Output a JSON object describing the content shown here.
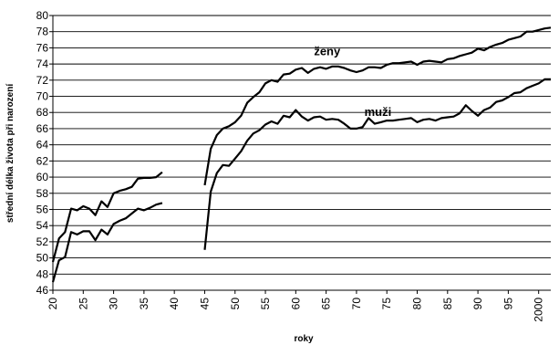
{
  "chart_data": {
    "type": "line",
    "xlabel": "roky",
    "ylabel": "střední délka života při narození",
    "xlim": [
      1920,
      2002
    ],
    "ylim": [
      46,
      80
    ],
    "y_ticks": [
      46,
      48,
      50,
      52,
      54,
      56,
      58,
      60,
      62,
      64,
      66,
      68,
      70,
      72,
      74,
      76,
      78,
      80
    ],
    "x_tick_values": [
      1920,
      1925,
      1930,
      1935,
      1940,
      1945,
      1950,
      1955,
      1960,
      1965,
      1970,
      1975,
      1980,
      1985,
      1990,
      1995,
      2000
    ],
    "x_tick_labels": [
      "20",
      "25",
      "30",
      "35",
      "40",
      "45",
      "50",
      "55",
      "60",
      "65",
      "70",
      "75",
      "80",
      "85",
      "90",
      "95",
      "2000"
    ],
    "grid": true,
    "legend": "none",
    "series": [
      {
        "name": "ženy",
        "label_at": [
          1963,
          75.1
        ],
        "segments": [
          {
            "x": [
              1920,
              1921,
              1922,
              1923,
              1924,
              1925,
              1926,
              1927,
              1928,
              1929,
              1930,
              1931,
              1932,
              1933,
              1934,
              1935,
              1936,
              1937,
              1938
            ],
            "y": [
              49.5,
              52.4,
              53.2,
              56.1,
              55.9,
              56.4,
              56.1,
              55.3,
              57.0,
              56.3,
              58.0,
              58.3,
              58.5,
              58.8,
              59.8,
              59.9,
              59.9,
              60.0,
              60.6
            ]
          },
          {
            "x": [
              1945,
              1946,
              1947,
              1948,
              1949,
              1950,
              1951,
              1952,
              1953,
              1954,
              1955,
              1956,
              1957,
              1958,
              1959,
              1960,
              1961,
              1962,
              1963,
              1964,
              1965,
              1966,
              1967,
              1968,
              1969,
              1970,
              1971,
              1972,
              1973,
              1974,
              1975,
              1976,
              1977,
              1978,
              1979,
              1980,
              1981,
              1982,
              1983,
              1984,
              1985,
              1986,
              1987,
              1988,
              1989,
              1990,
              1991,
              1992,
              1993,
              1994,
              1995,
              1996,
              1997,
              1998,
              1999,
              2000,
              2001,
              2002
            ],
            "y": [
              59.0,
              63.5,
              65.2,
              66.0,
              66.3,
              66.8,
              67.6,
              69.2,
              69.9,
              70.5,
              71.6,
              72.0,
              71.8,
              72.7,
              72.8,
              73.3,
              73.5,
              72.9,
              73.4,
              73.6,
              73.4,
              73.7,
              73.7,
              73.5,
              73.2,
              73.0,
              73.2,
              73.6,
              73.6,
              73.5,
              73.9,
              74.1,
              74.1,
              74.2,
              74.3,
              73.9,
              74.3,
              74.4,
              74.3,
              74.2,
              74.6,
              74.7,
              75.0,
              75.2,
              75.4,
              75.9,
              75.7,
              76.1,
              76.4,
              76.6,
              77.0,
              77.2,
              77.4,
              78.0,
              78.0,
              78.2,
              78.4,
              78.5
            ]
          }
        ]
      },
      {
        "name": "muži",
        "label_at": [
          1971.3,
          67.6
        ],
        "segments": [
          {
            "x": [
              1920,
              1921,
              1922,
              1923,
              1924,
              1925,
              1926,
              1927,
              1928,
              1929,
              1930,
              1931,
              1932,
              1933,
              1934,
              1935,
              1936,
              1937,
              1938
            ],
            "y": [
              47.0,
              49.7,
              50.1,
              53.2,
              52.9,
              53.3,
              53.3,
              52.2,
              53.5,
              52.9,
              54.2,
              54.6,
              54.9,
              55.5,
              56.1,
              55.9,
              56.2,
              56.6,
              56.8
            ]
          },
          {
            "x": [
              1945,
              1946,
              1947,
              1948,
              1949,
              1950,
              1951,
              1952,
              1953,
              1954,
              1955,
              1956,
              1957,
              1958,
              1959,
              1960,
              1961,
              1962,
              1963,
              1964,
              1965,
              1966,
              1967,
              1968,
              1969,
              1970,
              1971,
              1972,
              1973,
              1974,
              1975,
              1976,
              1977,
              1978,
              1979,
              1980,
              1981,
              1982,
              1983,
              1984,
              1985,
              1986,
              1987,
              1988,
              1989,
              1990,
              1991,
              1992,
              1993,
              1994,
              1995,
              1996,
              1997,
              1998,
              1999,
              2000,
              2001,
              2002
            ],
            "y": [
              51.0,
              58.2,
              60.5,
              61.5,
              61.4,
              62.3,
              63.2,
              64.5,
              65.4,
              65.8,
              66.5,
              66.9,
              66.6,
              67.6,
              67.4,
              68.3,
              67.5,
              67.0,
              67.4,
              67.5,
              67.1,
              67.2,
              67.1,
              66.6,
              66.0,
              66.0,
              66.2,
              67.3,
              66.6,
              66.8,
              67.0,
              67.0,
              67.1,
              67.2,
              67.3,
              66.8,
              67.1,
              67.2,
              67.0,
              67.3,
              67.4,
              67.5,
              67.9,
              68.9,
              68.2,
              67.6,
              68.3,
              68.6,
              69.3,
              69.5,
              69.9,
              70.4,
              70.5,
              71.0,
              71.3,
              71.6,
              72.1,
              72.1
            ]
          }
        ]
      }
    ]
  }
}
